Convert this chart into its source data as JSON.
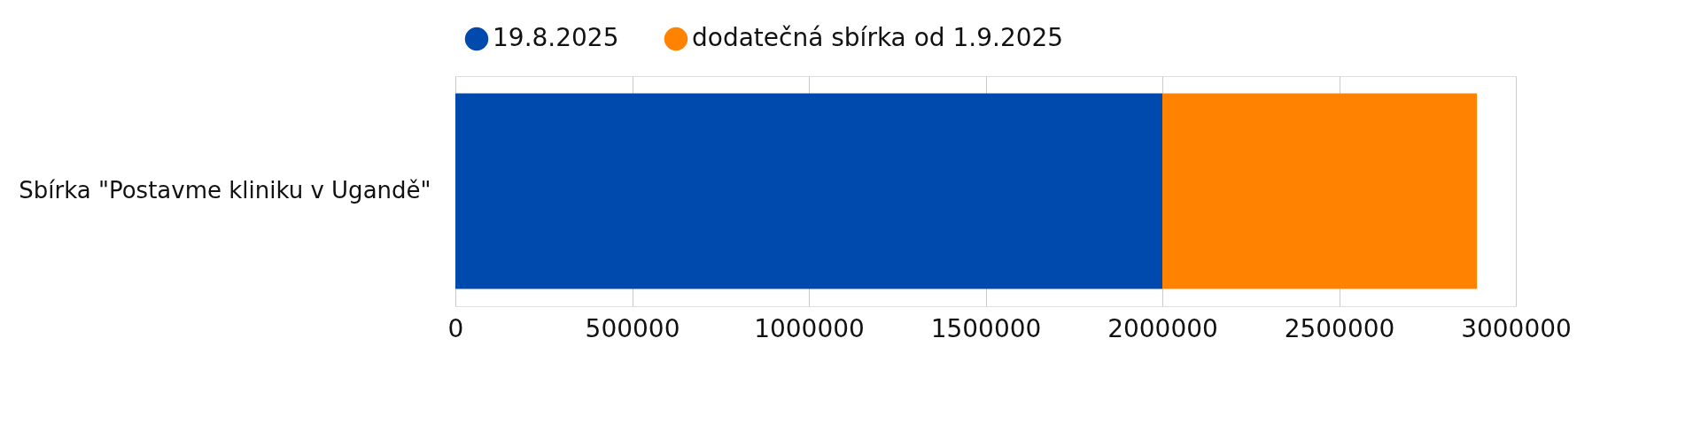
{
  "chart_data": {
    "type": "bar",
    "orientation": "horizontal",
    "stacked": true,
    "categories": [
      "Sbírka \"Postavme kliniku v Ugandě\""
    ],
    "series": [
      {
        "name": "19.8.2025",
        "color": "#004aad",
        "values": [
          2000000
        ]
      },
      {
        "name": "dodatečná sbírka od 1.9.2025",
        "color": "#ff8300",
        "values": [
          890000
        ]
      }
    ],
    "xlim": [
      0,
      3000000
    ],
    "xticks": [
      0,
      500000,
      1000000,
      1500000,
      2000000,
      2500000,
      3000000
    ],
    "grid": "x",
    "legend": "top"
  }
}
